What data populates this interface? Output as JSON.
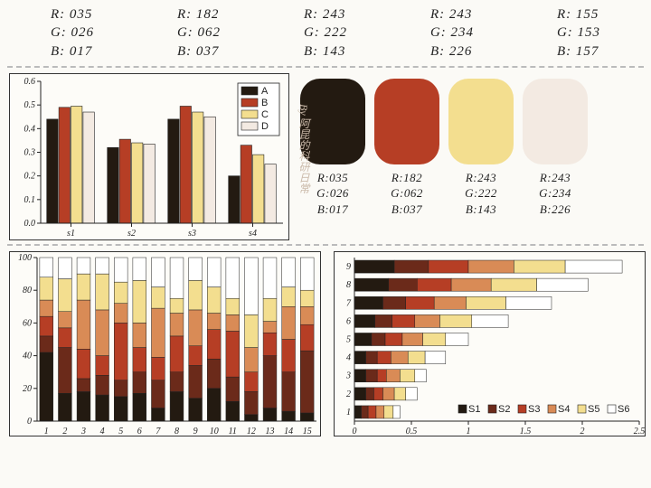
{
  "top_rgb": [
    {
      "R": "035",
      "G": "026",
      "B": "017"
    },
    {
      "R": "182",
      "G": "062",
      "B": "037"
    },
    {
      "R": "243",
      "G": "222",
      "B": "143"
    },
    {
      "R": "243",
      "G": "234",
      "B": "226"
    },
    {
      "R": "155",
      "G": "153",
      "B": "157"
    }
  ],
  "palette": [
    {
      "hex": "#231a11",
      "R": "035",
      "G": "026",
      "B": "017"
    },
    {
      "hex": "#b63e25",
      "R": "182",
      "G": "062",
      "B": "037"
    },
    {
      "hex": "#f3de8f",
      "R": "243",
      "G": "222",
      "B": "143"
    },
    {
      "hex": "#f3eae2",
      "R": "243",
      "G": "234",
      "B": "226"
    }
  ],
  "series_colors": {
    "A": "#231a11",
    "B": "#b63e25",
    "C": "#f3de8f",
    "D": "#f3eae2",
    "s1": "#231a11",
    "s2": "#6b2a1a",
    "s3": "#b63e25",
    "s4": "#d98b56",
    "s5": "#f3de8f",
    "s6": "#ffffff"
  },
  "grouped": {
    "type": "bar",
    "ylim": [
      0,
      0.6
    ],
    "ytick_step": 0.1,
    "categories": [
      "s1",
      "s2",
      "s3",
      "s4"
    ],
    "series": [
      "A",
      "B",
      "C",
      "D"
    ],
    "values": {
      "A": [
        0.44,
        0.32,
        0.44,
        0.2
      ],
      "B": [
        0.49,
        0.355,
        0.495,
        0.33
      ],
      "C": [
        0.495,
        0.34,
        0.47,
        0.29
      ],
      "D": [
        0.47,
        0.335,
        0.45,
        0.25
      ]
    },
    "bar_width": 0.8,
    "legend_pos": "top-right",
    "bg": "#fdfcf8",
    "border": "#222",
    "tick_font": 10
  },
  "stacked": {
    "type": "stacked-bar",
    "ylim": [
      0,
      100
    ],
    "ytick_step": 20,
    "categories": [
      "1",
      "2",
      "3",
      "4",
      "5",
      "6",
      "7",
      "8",
      "9",
      "10",
      "11",
      "12",
      "13",
      "14",
      "15"
    ],
    "series": [
      "s1",
      "s2",
      "s3",
      "s4",
      "s5",
      "s6"
    ],
    "values": [
      [
        42,
        10,
        12,
        10,
        14,
        12
      ],
      [
        17,
        28,
        12,
        10,
        20,
        13
      ],
      [
        18,
        8,
        18,
        30,
        16,
        10
      ],
      [
        16,
        12,
        12,
        28,
        22,
        10
      ],
      [
        15,
        10,
        35,
        12,
        13,
        15
      ],
      [
        17,
        13,
        15,
        15,
        26,
        14
      ],
      [
        8,
        17,
        14,
        30,
        13,
        18
      ],
      [
        18,
        12,
        22,
        14,
        9,
        25
      ],
      [
        14,
        20,
        12,
        22,
        18,
        14
      ],
      [
        20,
        18,
        18,
        10,
        16,
        18
      ],
      [
        12,
        15,
        28,
        10,
        10,
        25
      ],
      [
        4,
        14,
        12,
        15,
        20,
        35
      ],
      [
        8,
        32,
        14,
        7,
        14,
        25
      ],
      [
        6,
        24,
        20,
        20,
        12,
        18
      ],
      [
        5,
        38,
        16,
        11,
        10,
        20
      ]
    ],
    "bg": "#fdfcf8",
    "border": "#222",
    "tick_font": 10
  },
  "hbar": {
    "type": "stacked-hbar",
    "xlim": [
      0,
      2.5
    ],
    "xtick_step": 0.5,
    "categories": [
      "1",
      "2",
      "3",
      "4",
      "5",
      "6",
      "7",
      "8",
      "9"
    ],
    "series": [
      "S1",
      "S2",
      "S3",
      "S4",
      "S5",
      "S6"
    ],
    "values": [
      [
        0.06,
        0.06,
        0.07,
        0.07,
        0.08,
        0.06
      ],
      [
        0.1,
        0.07,
        0.08,
        0.1,
        0.1,
        0.1
      ],
      [
        0.1,
        0.1,
        0.08,
        0.12,
        0.13,
        0.1
      ],
      [
        0.1,
        0.1,
        0.12,
        0.15,
        0.15,
        0.18
      ],
      [
        0.15,
        0.12,
        0.15,
        0.18,
        0.2,
        0.2
      ],
      [
        0.18,
        0.15,
        0.2,
        0.22,
        0.28,
        0.32
      ],
      [
        0.25,
        0.2,
        0.25,
        0.28,
        0.35,
        0.4
      ],
      [
        0.3,
        0.25,
        0.3,
        0.35,
        0.4,
        0.45
      ],
      [
        0.35,
        0.3,
        0.35,
        0.4,
        0.45,
        0.5
      ]
    ],
    "legend_labels": [
      "S1",
      "S2",
      "S3",
      "S4",
      "S5",
      "S6"
    ],
    "bg": "#fdfcf8",
    "border": "#222",
    "tick_font": 10
  },
  "watermark": "By 阿昆的科研日常"
}
